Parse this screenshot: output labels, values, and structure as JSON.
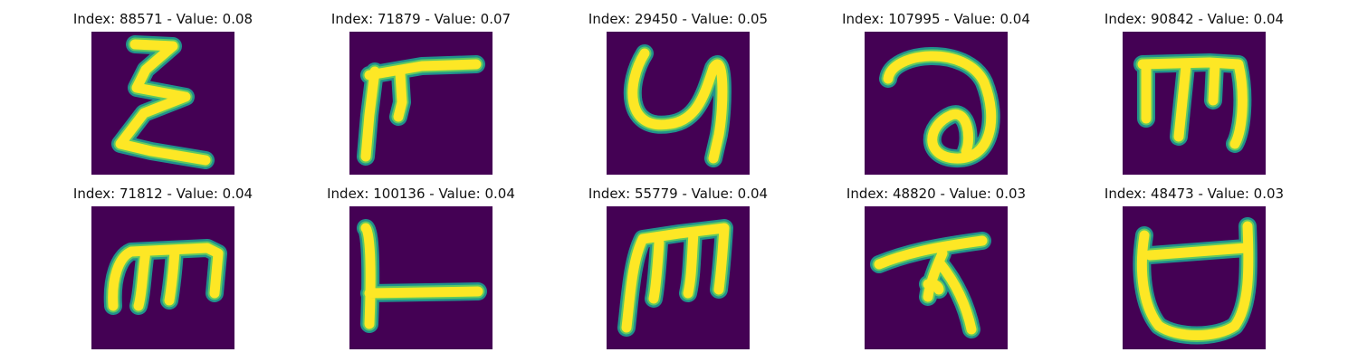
{
  "colors": {
    "background": "#440154",
    "stroke_edge": "#21918c",
    "stroke_mid": "#5ec962",
    "stroke_core": "#fde725"
  },
  "panels": [
    {
      "title": "Index: 88571 - Value: 0.08",
      "glyph": "sigma-icon"
    },
    {
      "title": "Index: 71879 - Value: 0.07",
      "glyph": "pi-hook-icon"
    },
    {
      "title": "Index: 29450 - Value: 0.05",
      "glyph": "curl-y-icon"
    },
    {
      "title": "Index: 107995 - Value: 0.04",
      "glyph": "loop-a-icon"
    },
    {
      "title": "Index: 90842 - Value: 0.04",
      "glyph": "bar-m-icon"
    },
    {
      "title": "Index: 71812 - Value: 0.04",
      "glyph": "arch-m-icon"
    },
    {
      "title": "Index: 100136 - Value: 0.04",
      "glyph": "reverse-l-icon"
    },
    {
      "title": "Index: 55779 - Value: 0.04",
      "glyph": "tall-m-icon"
    },
    {
      "title": "Index: 48820 - Value: 0.03",
      "glyph": "tau-legs-icon"
    },
    {
      "title": "Index: 48473 - Value: 0.03",
      "glyph": "cup-icon"
    }
  ]
}
